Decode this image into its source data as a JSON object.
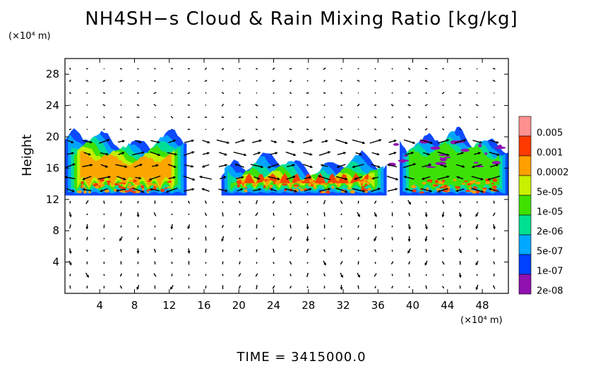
{
  "chart_data": {
    "type": "heatmap",
    "title": "NH4SH−s Cloud & Rain Mixing Ratio [kg/kg]",
    "ylabel": "Height",
    "xunit": "(×10⁴ m)",
    "yunit": "(×10⁴ m)",
    "footer": "TIME  =  3415000.0",
    "xlim": [
      0,
      51
    ],
    "ylim": [
      0,
      30
    ],
    "xticks": [
      4,
      8,
      12,
      16,
      20,
      24,
      28,
      32,
      36,
      40,
      44,
      48
    ],
    "yticks": [
      4,
      8,
      12,
      16,
      20,
      24,
      28
    ],
    "grid": false,
    "colorbar": {
      "labels": [
        "0.005",
        "0.001",
        "0.0002",
        "5e-05",
        "1e-05",
        "2e-06",
        "5e-07",
        "1e-07",
        "2e-08"
      ],
      "colors": [
        "#ff9090",
        "#ff3a00",
        "#ffa000",
        "#c8f000",
        "#40e000",
        "#00e090",
        "#00a8ff",
        "#0040ff",
        "#9010b0"
      ]
    },
    "cloud_blobs": [
      {
        "x": [
          0,
          14
        ],
        "y": [
          12.5,
          19.5
        ],
        "max_level": 2
      },
      {
        "x": [
          18,
          37
        ],
        "y": [
          12.5,
          16.5
        ],
        "max_level": 3
      },
      {
        "x": [
          38.5,
          51
        ],
        "y": [
          12.5,
          19.5
        ],
        "max_level": 1
      }
    ]
  }
}
